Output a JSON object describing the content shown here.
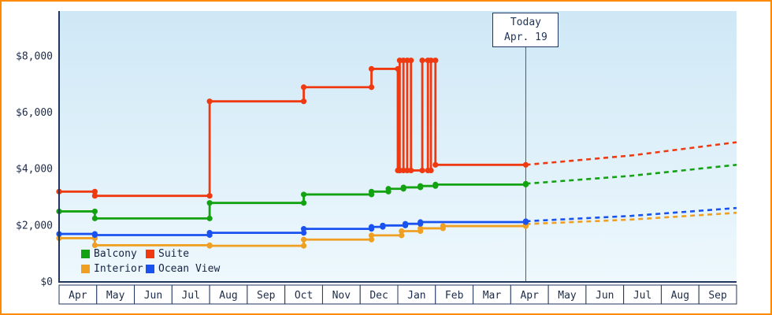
{
  "colors": {
    "frame_border": "#ff8a00",
    "axis": "#20365c",
    "text": "#1c2b4a",
    "plot_gradient_top": "#cfe8f6",
    "plot_gradient_bottom": "#eef8fd",
    "month_cell_bg": "#ffffff",
    "today_line": "#4a5878",
    "today_box_border": "#20365c"
  },
  "chart_data": {
    "type": "line",
    "step": true,
    "xlim_months": 18,
    "ylim": [
      0,
      9600
    ],
    "yticks": [
      {
        "value": 0,
        "label": "$0"
      },
      {
        "value": 2000,
        "label": "$2,000"
      },
      {
        "value": 4000,
        "label": "$4,000"
      },
      {
        "value": 6000,
        "label": "$6,000"
      },
      {
        "value": 8000,
        "label": "$8,000"
      }
    ],
    "months": [
      "Apr",
      "May",
      "Jun",
      "Jul",
      "Aug",
      "Sep",
      "Oct",
      "Nov",
      "Dec",
      "Jan",
      "Feb",
      "Mar",
      "Apr",
      "May",
      "Jun",
      "Jul",
      "Aug",
      "Sep"
    ],
    "today": {
      "title": "Today",
      "date": "Apr. 19",
      "month_offset": 12.4
    },
    "series": [
      {
        "name": "Balcony",
        "color": "#12a212",
        "solid": [
          [
            0,
            2500
          ],
          [
            0.95,
            2250
          ],
          [
            4,
            2800
          ],
          [
            6.5,
            3100
          ],
          [
            8.3,
            3200
          ],
          [
            8.75,
            3300
          ],
          [
            9.15,
            3350
          ],
          [
            9.6,
            3400
          ],
          [
            10,
            3450
          ],
          [
            12.4,
            3480
          ]
        ],
        "forecast": [
          [
            12.4,
            3480
          ],
          [
            15.2,
            3760
          ],
          [
            18,
            4150
          ]
        ]
      },
      {
        "name": "Suite",
        "color": "#ee3911",
        "solid": [
          [
            0,
            3200
          ],
          [
            0.95,
            3050
          ],
          [
            4,
            6400
          ],
          [
            6.5,
            6900
          ],
          [
            8.3,
            7550
          ],
          [
            9,
            3950
          ],
          [
            9.05,
            7850
          ],
          [
            9.15,
            3950
          ],
          [
            9.25,
            7850
          ],
          [
            9.35,
            3950
          ],
          [
            9.65,
            7850
          ],
          [
            9.8,
            3950
          ],
          [
            9.88,
            7850
          ],
          [
            10,
            4150
          ],
          [
            12.4,
            4150
          ]
        ],
        "forecast": [
          [
            12.4,
            4150
          ],
          [
            15.2,
            4480
          ],
          [
            18,
            4950
          ]
        ]
      },
      {
        "name": "Interior",
        "color": "#efa023",
        "solid": [
          [
            0,
            1550
          ],
          [
            0.95,
            1300
          ],
          [
            4,
            1280
          ],
          [
            6.5,
            1500
          ],
          [
            8.3,
            1650
          ],
          [
            9.1,
            1800
          ],
          [
            9.6,
            1900
          ],
          [
            10.2,
            1980
          ],
          [
            12.4,
            2050
          ]
        ],
        "forecast": [
          [
            12.4,
            2050
          ],
          [
            15.2,
            2210
          ],
          [
            18,
            2450
          ]
        ]
      },
      {
        "name": "Ocean View",
        "color": "#1a52f0",
        "solid": [
          [
            0,
            1700
          ],
          [
            0.95,
            1660
          ],
          [
            4,
            1740
          ],
          [
            6.5,
            1880
          ],
          [
            8.3,
            1950
          ],
          [
            8.6,
            2000
          ],
          [
            9.2,
            2060
          ],
          [
            9.6,
            2120
          ],
          [
            12.4,
            2150
          ]
        ],
        "forecast": [
          [
            12.4,
            2150
          ],
          [
            15.2,
            2340
          ],
          [
            18,
            2620
          ]
        ]
      }
    ]
  }
}
